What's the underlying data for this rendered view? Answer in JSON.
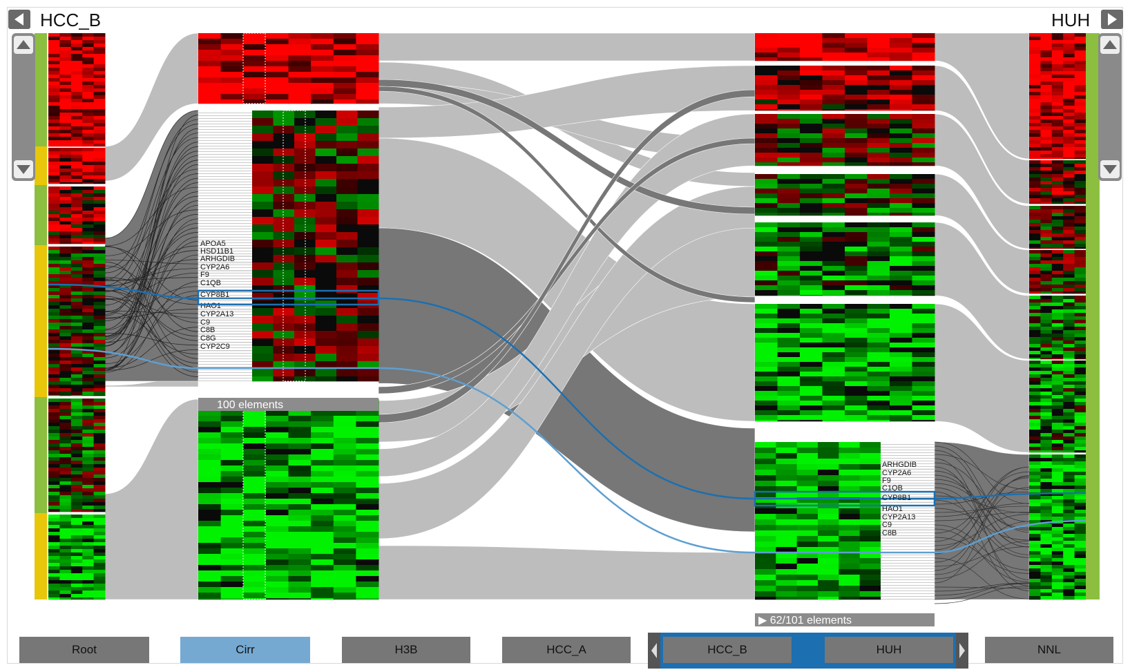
{
  "header": {
    "left_title": "HCC_B",
    "right_title": "HUH",
    "left_arrow_icon": "triangle-left-icon",
    "right_arrow_icon": "triangle-right-icon"
  },
  "left_group": {
    "counter": "100 elements",
    "gene_labels": [
      "APOA5",
      "HSD11B1",
      "ARHGDIB",
      "CYP2A6",
      "F9",
      "C1QB",
      "CYP8B1",
      "HAO1",
      "CYP2A13",
      "C9",
      "C8B",
      "C8G",
      "CYP2C9"
    ],
    "selected_gene": "CYP8B1"
  },
  "right_group": {
    "counter": "▶ 62/101 elements",
    "gene_labels": [
      "ARHGDIB",
      "CYP2A6",
      "F9",
      "C1QB",
      "CYP8B1",
      "HAO1",
      "CYP2A13",
      "C9",
      "C8B"
    ],
    "selected_gene": "CYP8B1"
  },
  "tabs": [
    {
      "label": "Root",
      "selected": false
    },
    {
      "label": "Cirr",
      "selected": true
    },
    {
      "label": "H3B",
      "selected": false
    },
    {
      "label": "HCC_A",
      "selected": false
    },
    {
      "label": "HCC_B",
      "selected": false
    },
    {
      "label": "HUH",
      "selected": false
    },
    {
      "label": "NNL",
      "selected": false
    }
  ],
  "colors": {
    "heat_red": "#ff0000",
    "heat_green": "#00dd00",
    "ribbon": "#bdbdbd",
    "ribbon_dark": "#777777",
    "highlight": "#1c6fb0",
    "highlight_light": "#5e9fd1",
    "tab_grey": "#777777",
    "tab_selected": "#76a9d2",
    "stripe_green": "#8cbf3f",
    "stripe_yellow": "#e8c60a"
  }
}
